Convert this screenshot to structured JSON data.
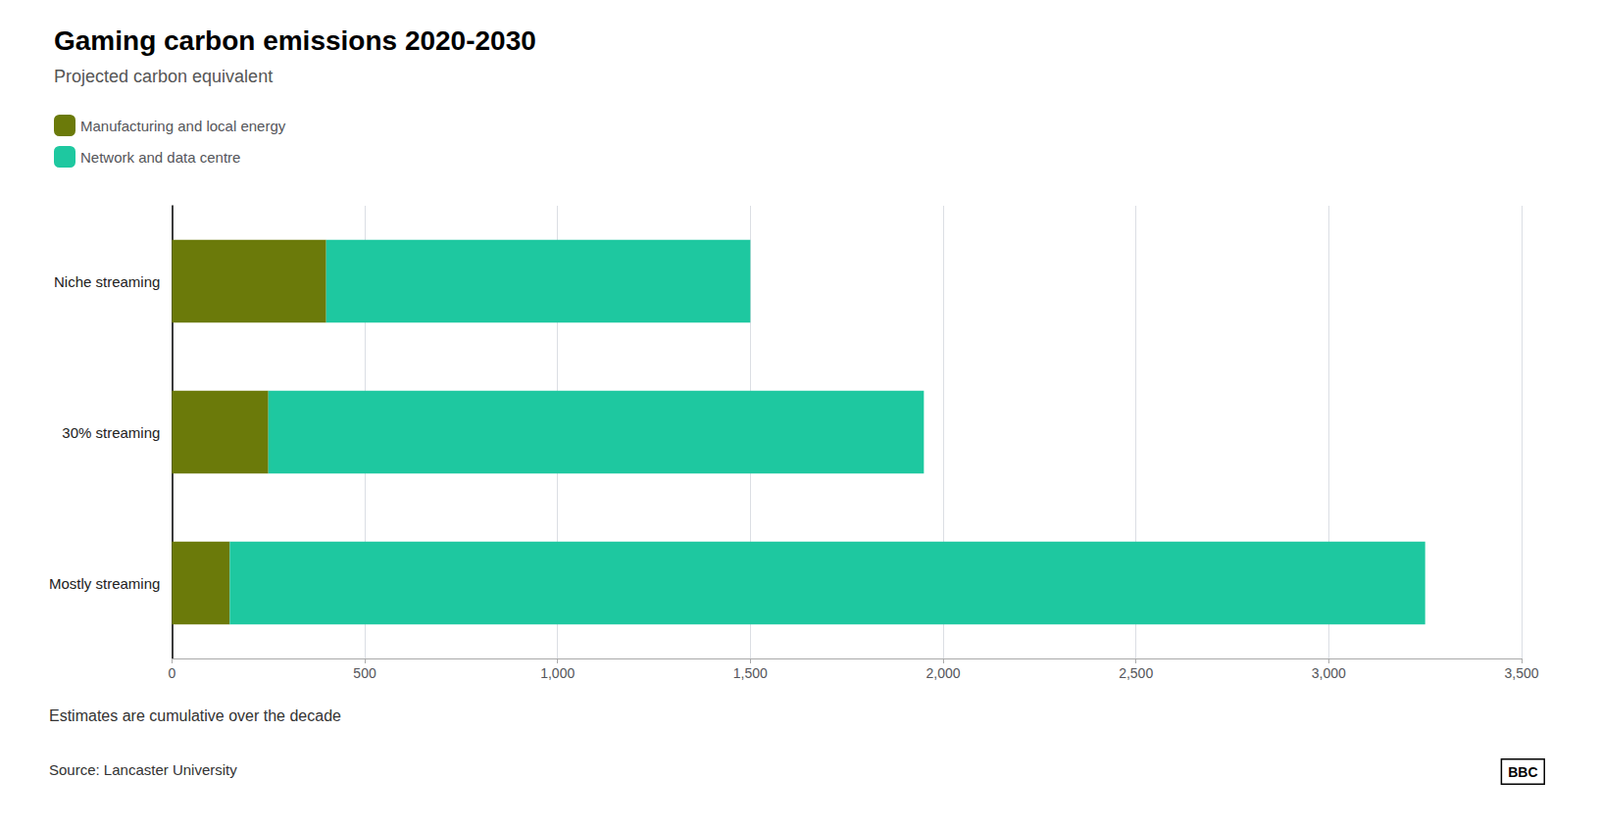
{
  "chart_data": {
    "type": "bar",
    "orientation": "horizontal",
    "stacked": true,
    "title": "Gaming carbon emissions 2020-2030",
    "subtitle": "Projected carbon equivalent",
    "annotations": [
      "Estimates are cumulative over the decade",
      "Source: Lancaster University",
      "BBC"
    ],
    "categories": [
      "Niche streaming",
      "30% streaming",
      "Mostly streaming"
    ],
    "series": [
      {
        "name": "Manufacturing and local energy",
        "color": "#6b7a0a",
        "values": [
          400,
          250,
          150
        ]
      },
      {
        "name": "Network and data centre",
        "color": "#1ec8a0",
        "values": [
          1100,
          1700,
          3100
        ]
      }
    ],
    "xlim": [
      0,
      3500
    ],
    "xticks": [
      0,
      500,
      {
        "value": 1000,
        "label": "1,000"
      },
      {
        "value": 1500,
        "label": "1,500"
      },
      {
        "value": 2000,
        "label": "2,000"
      },
      {
        "value": 2500,
        "label": "2,500"
      },
      {
        "value": 3000,
        "label": "3,000"
      },
      {
        "value": 3500,
        "label": "3,500"
      }
    ],
    "grid": true,
    "legend": "top-left"
  }
}
